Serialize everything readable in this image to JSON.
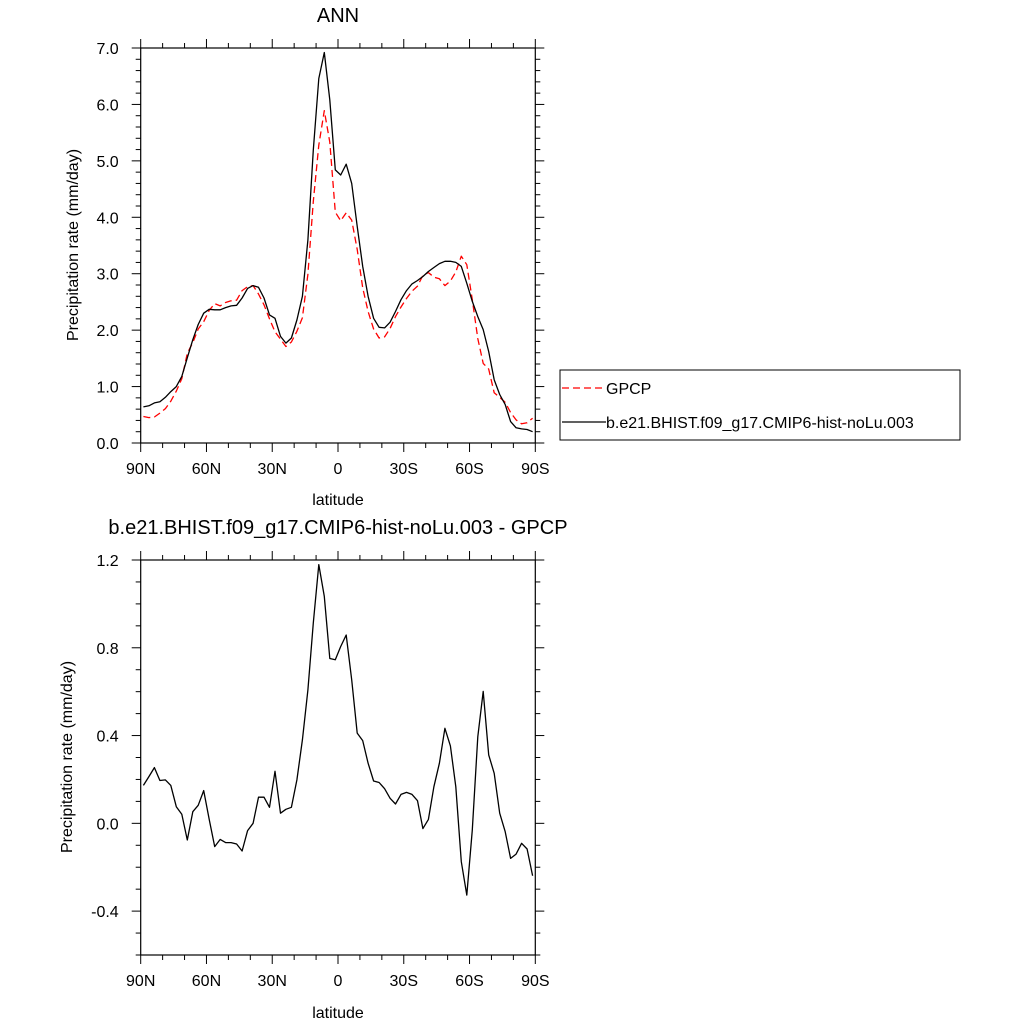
{
  "chart_data": [
    {
      "type": "line",
      "title": "ANN",
      "xlabel": "latitude",
      "ylabel": "Precipitation rate (mm/day)",
      "xlim": [
        90,
        -90
      ],
      "ylim": [
        0,
        7
      ],
      "xticks": [
        90,
        60,
        30,
        0,
        -30,
        -60,
        -90
      ],
      "xtick_labels": [
        "90N",
        "60N",
        "30N",
        "0",
        "30S",
        "60S",
        "90S"
      ],
      "yticks": [
        0,
        1,
        2,
        3,
        4,
        5,
        6,
        7
      ],
      "ytick_labels": [
        "0.0",
        "1.0",
        "2.0",
        "3.0",
        "4.0",
        "5.0",
        "6.0",
        "7.0"
      ],
      "grid": false,
      "legend": "right",
      "lat": [
        88.75,
        86.25,
        83.75,
        81.25,
        78.75,
        76.25,
        73.75,
        71.25,
        68.75,
        66.25,
        63.75,
        61.25,
        58.75,
        56.25,
        53.75,
        51.25,
        48.75,
        46.25,
        43.75,
        41.25,
        38.75,
        36.25,
        33.75,
        31.25,
        28.75,
        26.25,
        23.75,
        21.25,
        18.75,
        16.25,
        13.75,
        11.25,
        8.75,
        6.25,
        3.75,
        1.25,
        -1.25,
        -3.75,
        -6.25,
        -8.75,
        -11.25,
        -13.75,
        -16.25,
        -18.75,
        -21.25,
        -23.75,
        -26.25,
        -28.75,
        -31.25,
        -33.75,
        -36.25,
        -38.75,
        -41.25,
        -43.75,
        -46.25,
        -48.75,
        -51.25,
        -53.75,
        -56.25,
        -58.75,
        -61.25,
        -63.75,
        -66.25,
        -68.75,
        -71.25,
        -73.75,
        -76.25,
        -78.75,
        -81.25,
        -83.75,
        -86.25,
        -88.75
      ],
      "series": [
        {
          "name": "GPCP",
          "color": "#ff0000",
          "style": "dashed",
          "values": [
            0.47,
            0.45,
            0.46,
            0.53,
            0.61,
            0.74,
            0.92,
            1.14,
            1.59,
            1.78,
            2.02,
            2.15,
            2.35,
            2.47,
            2.43,
            2.49,
            2.52,
            2.53,
            2.7,
            2.77,
            2.79,
            2.64,
            2.45,
            2.2,
            1.97,
            1.84,
            1.71,
            1.79,
            1.98,
            2.22,
            2.99,
            4.28,
            5.28,
            5.89,
            5.33,
            4.09,
            3.94,
            4.08,
            3.95,
            3.43,
            2.75,
            2.33,
            2.02,
            1.86,
            1.88,
            2.03,
            2.24,
            2.41,
            2.56,
            2.69,
            2.78,
            2.97,
            3.02,
            2.94,
            2.91,
            2.79,
            2.87,
            3.03,
            3.31,
            3.16,
            2.54,
            1.85,
            1.41,
            1.31,
            0.89,
            0.81,
            0.72,
            0.54,
            0.41,
            0.34,
            0.36,
            0.44
          ]
        },
        {
          "name": "b.e21.BHIST.f09_g17.CMIP6-hist-noLu.003",
          "color": "#000000",
          "style": "solid",
          "values": [
            0.64,
            0.66,
            0.71,
            0.73,
            0.81,
            0.91,
            1.0,
            1.18,
            1.51,
            1.83,
            2.1,
            2.3,
            2.37,
            2.36,
            2.36,
            2.4,
            2.43,
            2.44,
            2.57,
            2.74,
            2.79,
            2.76,
            2.57,
            2.27,
            2.21,
            1.89,
            1.77,
            1.86,
            2.18,
            2.6,
            3.6,
            5.19,
            6.46,
            6.92,
            6.08,
            4.84,
            4.75,
            4.94,
            4.6,
            3.84,
            3.13,
            2.6,
            2.21,
            2.05,
            2.04,
            2.14,
            2.33,
            2.54,
            2.7,
            2.82,
            2.88,
            2.95,
            3.04,
            3.11,
            3.18,
            3.22,
            3.22,
            3.2,
            3.13,
            2.83,
            2.51,
            2.24,
            2.01,
            1.62,
            1.12,
            0.86,
            0.68,
            0.38,
            0.27,
            0.25,
            0.24,
            0.2
          ]
        }
      ]
    },
    {
      "type": "line",
      "title": "b.e21.BHIST.f09_g17.CMIP6-hist-noLu.003 - GPCP",
      "xlabel": "latitude",
      "ylabel": "Precipitation rate (mm/day)",
      "xlim": [
        90,
        -90
      ],
      "ylim": [
        -0.6,
        1.2
      ],
      "xticks": [
        90,
        60,
        30,
        0,
        -30,
        -60,
        -90
      ],
      "xtick_labels": [
        "90N",
        "60N",
        "30N",
        "0",
        "30S",
        "60S",
        "90S"
      ],
      "yticks": [
        -0.4,
        0.0,
        0.4,
        0.8,
        1.2
      ],
      "ytick_labels": [
        "-0.4",
        "0.0",
        "0.4",
        "0.8",
        "1.2"
      ],
      "grid": false,
      "series": [
        {
          "color": "#000000",
          "style": "solid",
          "values": [
            0.173,
            0.213,
            0.254,
            0.195,
            0.198,
            0.173,
            0.076,
            0.041,
            -0.076,
            0.053,
            0.082,
            0.149,
            0.018,
            -0.106,
            -0.073,
            -0.088,
            -0.088,
            -0.094,
            -0.126,
            -0.033,
            0.0,
            0.119,
            0.119,
            0.073,
            0.237,
            0.046,
            0.064,
            0.073,
            0.198,
            0.38,
            0.608,
            0.913,
            1.179,
            1.034,
            0.751,
            0.745,
            0.806,
            0.858,
            0.654,
            0.411,
            0.377,
            0.274,
            0.193,
            0.186,
            0.158,
            0.114,
            0.088,
            0.132,
            0.141,
            0.132,
            0.103,
            -0.024,
            0.018,
            0.167,
            0.274,
            0.433,
            0.353,
            0.167,
            -0.175,
            -0.327,
            -0.03,
            0.395,
            0.601,
            0.312,
            0.228,
            0.046,
            -0.038,
            -0.16,
            -0.14,
            -0.091,
            -0.117,
            -0.239
          ]
        }
      ]
    }
  ]
}
